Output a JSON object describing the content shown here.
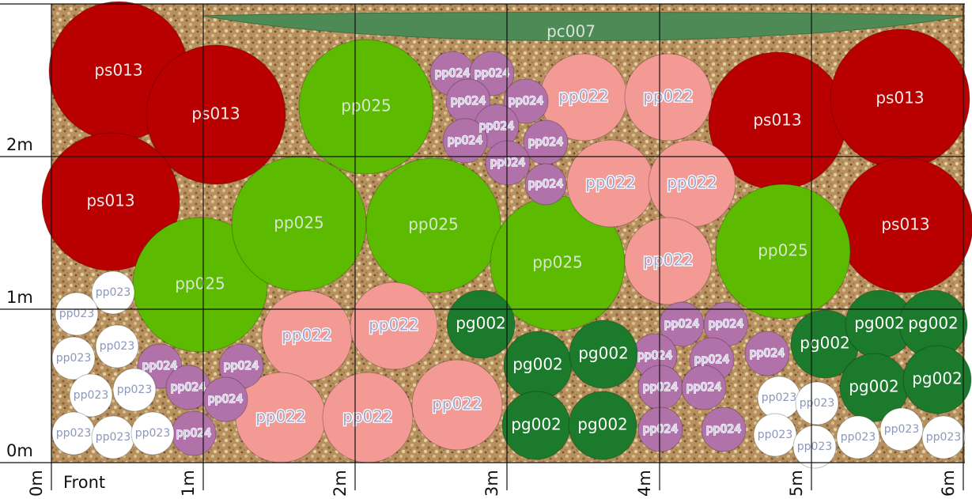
{
  "plan": {
    "border_plant": "pc007",
    "plants": [
      "ps013",
      "ps013",
      "ps013",
      "ps013",
      "ps013",
      "ps013",
      "pp025",
      "pp025",
      "pp025",
      "pp025",
      "pp025",
      "pp025",
      "pp022",
      "pp022",
      "pp022",
      "pp022",
      "pp022",
      "pp022",
      "pp022",
      "pp022",
      "pp022",
      "pp022",
      "pp024",
      "pp024",
      "pp024",
      "pp024",
      "pp024",
      "pp024",
      "pp024",
      "pp024",
      "pp024",
      "pp024",
      "pp024",
      "pp024",
      "pp024",
      "pp024",
      "pp024",
      "pp024",
      "pp024",
      "pp024",
      "pp024",
      "pp024",
      "pp024",
      "pp024",
      "pp024",
      "pg002",
      "pg002",
      "pg002",
      "pg002",
      "pg002",
      "pg002",
      "pg002",
      "pg002",
      "pg002",
      "pg002",
      "pp023",
      "pp023",
      "pp023",
      "pp023",
      "pp023",
      "pp023",
      "pp023",
      "pp023",
      "pp023",
      "pp023",
      "pp023",
      "pp023",
      "pp023",
      "pp023",
      "pp023",
      "pp023"
    ],
    "y_axis": [
      "2m",
      "1m",
      "0m"
    ],
    "x_axis": [
      "0m",
      "1m",
      "2m",
      "3m",
      "4m",
      "5m",
      "6m"
    ],
    "front": "Front"
  }
}
